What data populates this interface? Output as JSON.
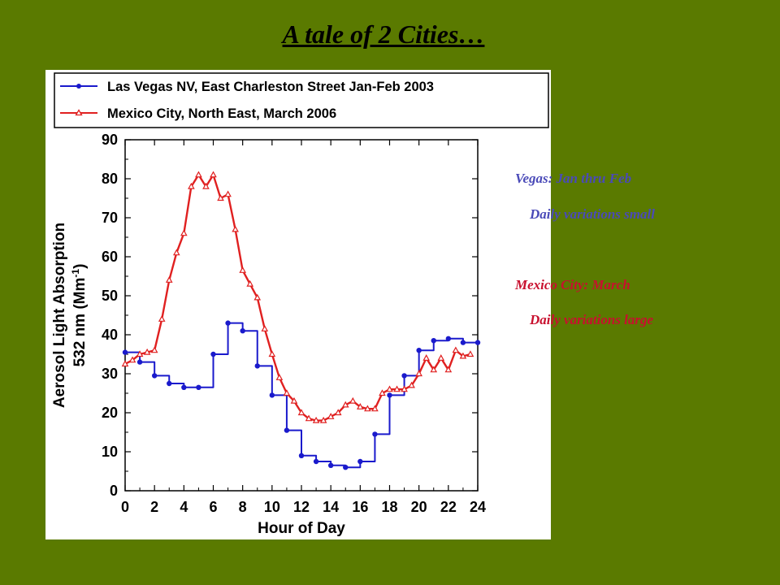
{
  "slide": {
    "title": "A tale of 2 Cities… "
  },
  "notes": {
    "vegas_heading": "Vegas:  Jan thru Feb",
    "vegas_detail": "Daily variations small",
    "mexico_heading": "Mexico City:  March",
    "mexico_detail": "Daily variations large",
    "vegas_color": "#4a4ab8",
    "mexico_color": "#c8102e"
  },
  "chart_data": {
    "type": "line",
    "title": "",
    "xlabel": "Hour of Day",
    "ylabel_line1": "Aerosol Light Absorption",
    "ylabel_line2_prefix": "532 nm (Mm",
    "ylabel_line2_sup": "-1",
    "ylabel_line2_suffix": ")",
    "xlim": [
      0,
      24
    ],
    "ylim": [
      0,
      90
    ],
    "xticks": [
      "0",
      "2",
      "4",
      "6",
      "8",
      "10",
      "12",
      "14",
      "16",
      "18",
      "20",
      "22",
      "24"
    ],
    "yticks": [
      "0",
      "10",
      "20",
      "30",
      "40",
      "50",
      "60",
      "70",
      "80",
      "90"
    ],
    "grid": false,
    "legend_position": "top",
    "series": [
      {
        "name": "Las Vegas NV, East Charleston Street Jan-Feb 2003",
        "color": "#1a1acc",
        "marker": "circle",
        "step": true,
        "x": [
          0,
          1,
          2,
          3,
          4,
          5,
          6,
          7,
          8,
          9,
          10,
          11,
          12,
          13,
          14,
          15,
          16,
          17,
          18,
          19,
          20,
          21,
          22,
          23,
          24
        ],
        "y": [
          35.5,
          33,
          29.5,
          27.5,
          26.5,
          26.5,
          35,
          43,
          41,
          32,
          24.5,
          15.5,
          9,
          7.5,
          6.5,
          6,
          7.5,
          14.5,
          24.5,
          29.5,
          36,
          38.5,
          39,
          38,
          38
        ]
      },
      {
        "name": "Mexico City, North East, March 2006",
        "color": "#e02020",
        "marker": "triangle",
        "step": false,
        "x": [
          0,
          0.5,
          1,
          1.5,
          2,
          2.5,
          3,
          3.5,
          4,
          4.5,
          5,
          5.5,
          6,
          6.5,
          7,
          7.5,
          8,
          8.5,
          9,
          9.5,
          10,
          10.5,
          11,
          11.5,
          12,
          12.5,
          13,
          13.5,
          14,
          14.5,
          15,
          15.5,
          16,
          16.5,
          17,
          17.5,
          18,
          18.5,
          19,
          19.5,
          20,
          20.5,
          21,
          21.5,
          22,
          22.5,
          23,
          23.5
        ],
        "y": [
          32.5,
          33.5,
          35,
          35.5,
          36,
          44,
          54,
          61,
          66,
          78,
          81,
          78,
          81,
          75,
          76,
          67,
          56.5,
          53,
          49.5,
          41.5,
          35,
          29,
          25,
          23,
          20,
          18.5,
          18,
          18,
          19,
          20,
          22,
          23,
          21.5,
          21,
          21,
          25,
          26,
          26,
          26,
          27,
          30,
          34,
          31,
          34,
          31,
          36,
          34.5,
          35
        ]
      }
    ]
  }
}
